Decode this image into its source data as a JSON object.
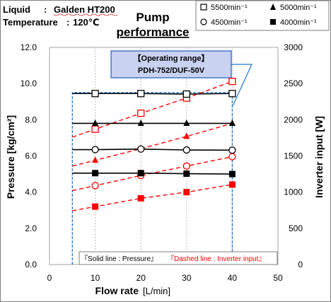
{
  "info": {
    "liquid_label": "Liquid",
    "liquid_value": "Galden HT200",
    "temperature_label": "Temperature",
    "temperature_value": "120℃"
  },
  "chart_data": {
    "type": "line",
    "title_line1": "Pump",
    "title_line2": "performance",
    "xlabel": "Flow rate",
    "xlabel_unit": "[L/min]",
    "ylabel_left": "Pressure [kg/cm²]",
    "ylabel_right": "Inverter input [W]",
    "xlim": [
      0,
      50
    ],
    "ylim_left": [
      0,
      12
    ],
    "ylim_right": [
      0,
      3000
    ],
    "x_ticks": [
      "0",
      "10",
      "20",
      "30",
      "40",
      "50"
    ],
    "y_left_ticks": [
      "0.0",
      "2.0",
      "4.0",
      "6.0",
      "8.0",
      "10.0",
      "12.0"
    ],
    "y_right_ticks": [
      "0",
      "500",
      "1000",
      "1500",
      "2000",
      "2500",
      "3000"
    ],
    "grid": "vertical dotted",
    "legend_position": "top-right",
    "legend": [
      {
        "label": "5500min⁻¹",
        "marker": "open-square"
      },
      {
        "label": "5000min⁻¹",
        "marker": "filled-triangle"
      },
      {
        "label": "4500min⁻¹",
        "marker": "open-circle"
      },
      {
        "label": "4000min⁻¹",
        "marker": "filled-square"
      }
    ],
    "operating_range": {
      "title": "【Operating range】",
      "model": "PDH-752/DUF-50V",
      "x_range": [
        5,
        40
      ],
      "y_top": 9.5
    },
    "note": {
      "solid": "『Solid line : Pressure』",
      "dashed": "『Dashed line : Inverter input』"
    },
    "x": [
      10,
      20,
      30,
      40
    ],
    "pressure_series": [
      {
        "marker": "open-square",
        "values": [
          9.45,
          9.45,
          9.42,
          9.45
        ]
      },
      {
        "marker": "filled-triangle",
        "values": [
          7.8,
          7.8,
          7.8,
          7.8
        ]
      },
      {
        "marker": "open-circle",
        "values": [
          6.35,
          6.38,
          6.33,
          6.32
        ]
      },
      {
        "marker": "filled-square",
        "values": [
          5.05,
          5.05,
          5.02,
          5.0
        ]
      }
    ],
    "power_series": [
      {
        "marker": "open-square",
        "values": [
          1870,
          2090,
          2300,
          2530
        ]
      },
      {
        "marker": "filled-triangle",
        "values": [
          1440,
          1600,
          1770,
          1950
        ]
      },
      {
        "marker": "open-circle",
        "values": [
          1090,
          1230,
          1360,
          1490
        ]
      },
      {
        "marker": "filled-square",
        "values": [
          800,
          915,
          1000,
          1105
        ]
      }
    ],
    "colors": {
      "pressure": "#000000",
      "power": "#ff0000",
      "operating_range": "#1f77c8",
      "range_box_fill": "#c9d2f0",
      "range_box_border": "#1f5fbf"
    }
  }
}
